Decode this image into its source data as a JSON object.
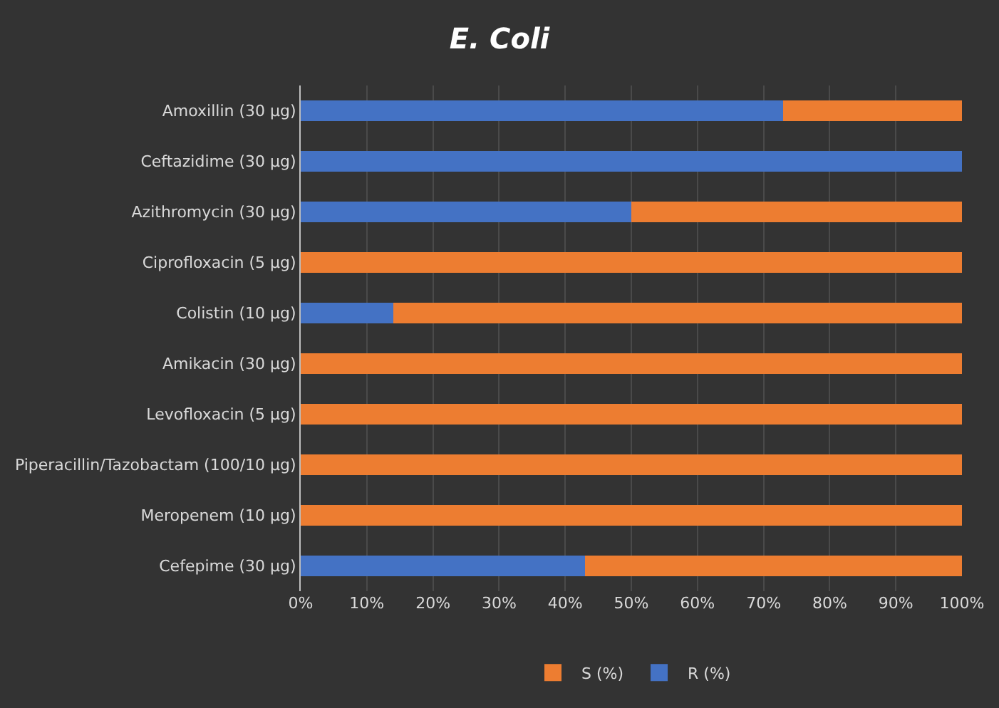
{
  "chart_data": {
    "type": "bar",
    "orientation": "horizontal",
    "stacked": true,
    "title": "E. Coli",
    "categories": [
      "Amoxillin (30 µg)",
      "Ceftazidime (30 µg)",
      "Azithromycin (30 µg)",
      "Ciprofloxacin (5 µg)",
      "Colistin (10 µg)",
      "Amikacin (30 µg)",
      "Levofloxacin (5 µg)",
      "Piperacillin/Tazobactam (100/10 µg)",
      "Meropenem (10 µg)",
      "Cefepime (30 µg)"
    ],
    "series": [
      {
        "name": "R (%)",
        "color": "#4472c4",
        "values": [
          73,
          100,
          50,
          0,
          14,
          0,
          0,
          0,
          0,
          43
        ]
      },
      {
        "name": "S (%)",
        "color": "#ed7d31",
        "values": [
          27,
          0,
          50,
          100,
          86,
          100,
          100,
          100,
          100,
          57
        ]
      }
    ],
    "xlim": [
      0,
      100
    ],
    "xticks": [
      {
        "value": 0,
        "label": "0%"
      },
      {
        "value": 10,
        "label": "10%"
      },
      {
        "value": 20,
        "label": "20%"
      },
      {
        "value": 30,
        "label": "30%"
      },
      {
        "value": 40,
        "label": "40%"
      },
      {
        "value": 50,
        "label": "50%"
      },
      {
        "value": 60,
        "label": "60%"
      },
      {
        "value": 70,
        "label": "70%"
      },
      {
        "value": 80,
        "label": "80%"
      },
      {
        "value": 90,
        "label": "90%"
      },
      {
        "value": 100,
        "label": "100%"
      }
    ],
    "grid": "x",
    "legend": "bottom"
  }
}
